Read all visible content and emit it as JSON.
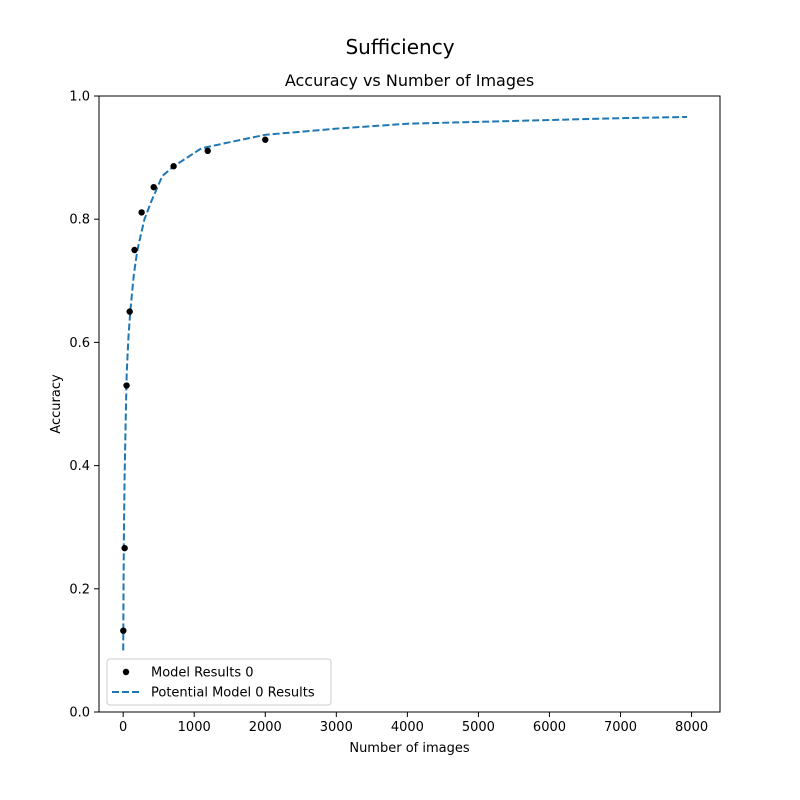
{
  "figure": {
    "suptitle": "Sufficiency"
  },
  "chart_data": {
    "type": "scatter",
    "title": "Accuracy vs Number of Images",
    "xlabel": "Number of images",
    "ylabel": "Accuracy",
    "xlim": [
      -340,
      8400
    ],
    "ylim": [
      0.0,
      1.0
    ],
    "xticks": [
      0,
      1000,
      2000,
      3000,
      4000,
      5000,
      6000,
      7000,
      8000
    ],
    "yticks": [
      0.0,
      0.2,
      0.4,
      0.6,
      0.8,
      1.0
    ],
    "grid": false,
    "legend_position": "lower-left",
    "series": [
      {
        "name": "Model Results 0",
        "type": "scatter",
        "color": "#000000",
        "x": [
          2,
          21,
          48,
          92,
          160,
          260,
          430,
          710,
          1190,
          2000
        ],
        "y": [
          0.132,
          0.266,
          0.53,
          0.65,
          0.75,
          0.811,
          0.852,
          0.886,
          0.911,
          0.929
        ]
      },
      {
        "name": "Potential Model 0 Results",
        "type": "line",
        "style": "dashed",
        "color": "#1f77b4",
        "x": [
          1,
          5,
          10,
          20,
          35,
          50,
          75,
          100,
          150,
          200,
          300,
          400,
          550,
          700,
          900,
          1100,
          1500,
          2000,
          2500,
          3000,
          4000,
          5000,
          6000,
          7000,
          7936
        ],
        "y": [
          0.1,
          0.2,
          0.28,
          0.38,
          0.47,
          0.55,
          0.61,
          0.65,
          0.71,
          0.75,
          0.8,
          0.83,
          0.87,
          0.885,
          0.9,
          0.915,
          0.925,
          0.937,
          0.942,
          0.947,
          0.955,
          0.958,
          0.961,
          0.964,
          0.966
        ]
      }
    ]
  }
}
